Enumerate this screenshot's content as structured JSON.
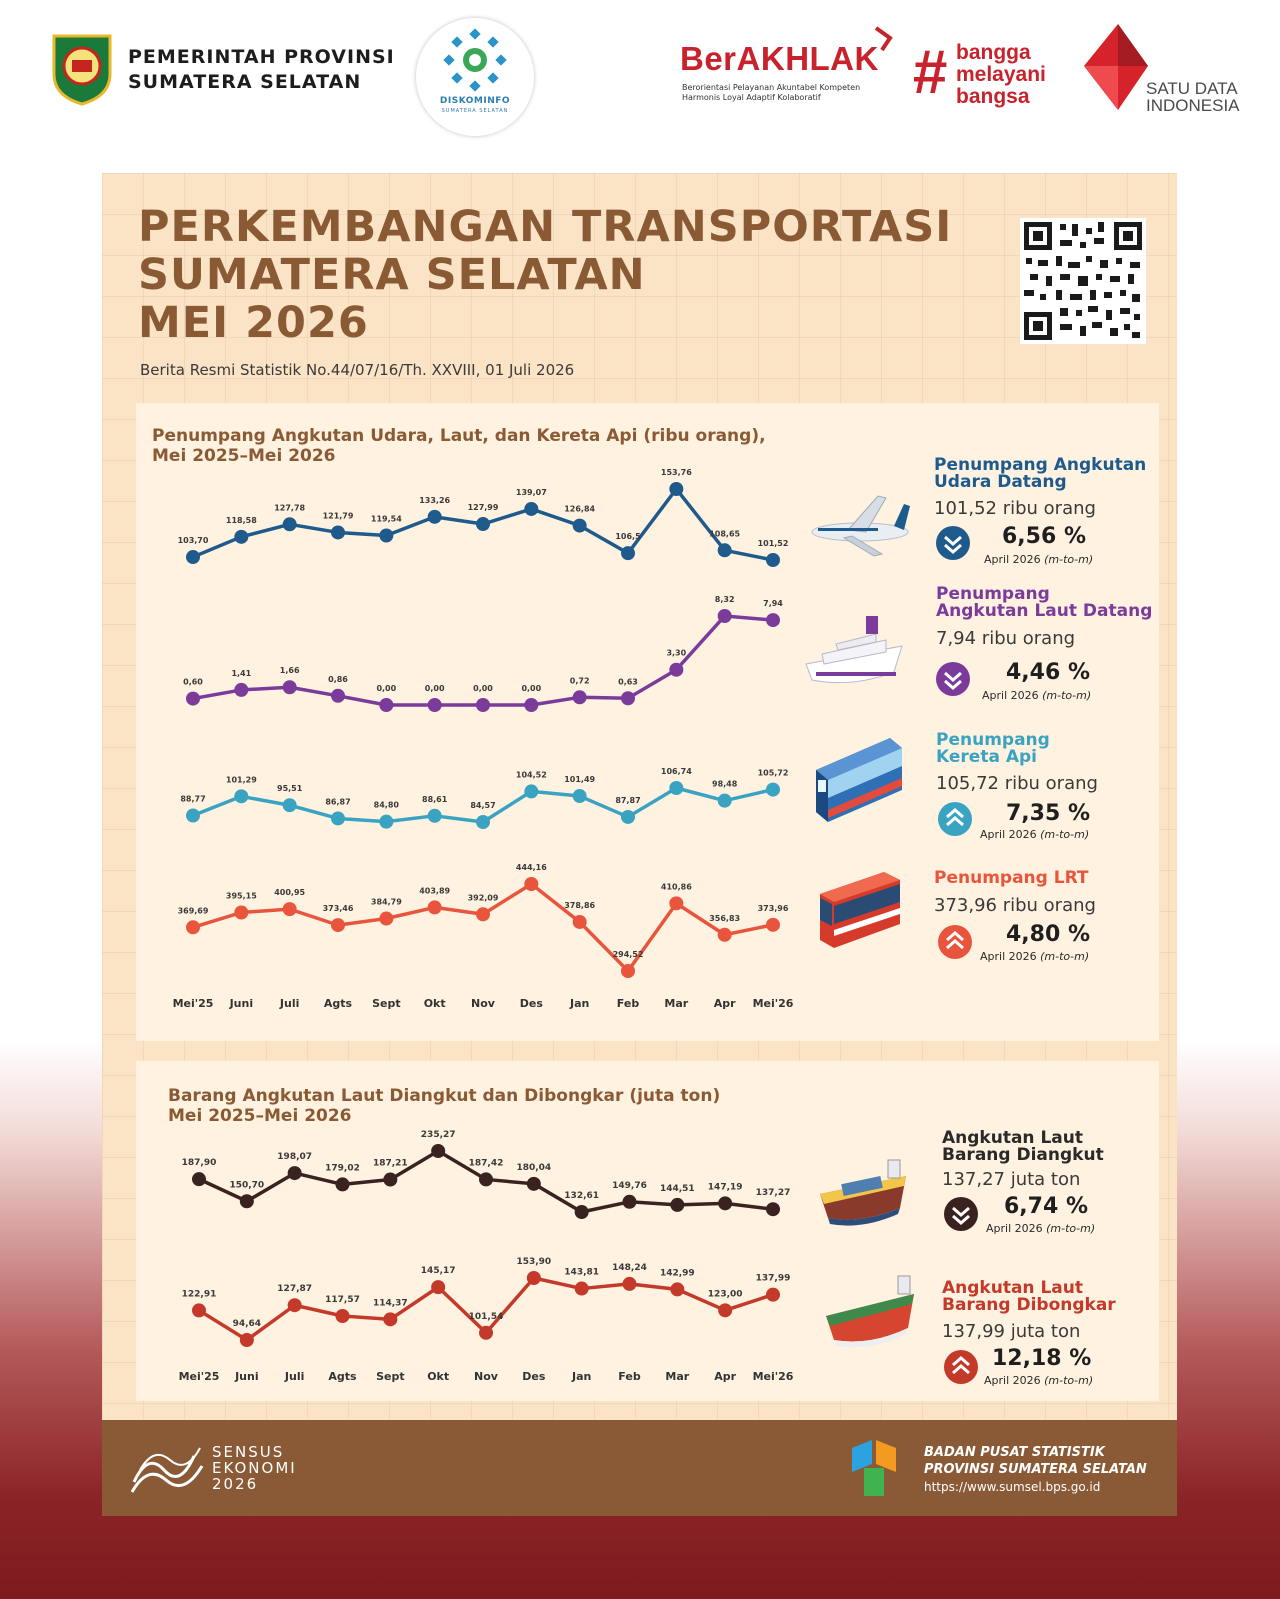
{
  "header": {
    "prov_line1": "PEMERINTAH PROVINSI",
    "prov_line2": "SUMATERA SELATAN",
    "diskominfo": "DISKOMINFO",
    "diskominfo_sub": "SUMATERA SELATAN",
    "berakhlak": "BerAKHLAK",
    "berakhlak_tag1": "Berorientasi Pelayanan Akuntabel Kompeten",
    "berakhlak_tag2": "Harmonis Loyal Adaptif Kolaboratif",
    "bangga_hash": "#",
    "bangga_1": "bangga",
    "bangga_2": "melayani",
    "bangga_3": "bangsa",
    "satu_1": "SATU DATA",
    "satu_2": "INDONESIA"
  },
  "title": {
    "line1": "PERKEMBANGAN TRANSPORTASI",
    "line2": "SUMATERA SELATAN",
    "line3": "MEI 2026",
    "subtitle": "Berita Resmi Statistik No.44/07/16/Th. XXVIII, 01 Juli 2026"
  },
  "colors": {
    "udara": "#1e5b8c",
    "laut": "#7a3b9b",
    "kereta": "#3ba3c2",
    "lrt": "#e8553c",
    "diangkut": "#3a2220",
    "dibongkar": "#c43a2a"
  },
  "chart_data": [
    {
      "type": "line",
      "title_line1": "Penumpang Angkutan Udara, Laut, dan Kereta Api (ribu orang),",
      "title_line2": "Mei 2025–Mei 2026",
      "categories": [
        "Mei'25",
        "Juni",
        "Juli",
        "Agts",
        "Sept",
        "Okt",
        "Nov",
        "Des",
        "Jan",
        "Feb",
        "Mar",
        "Apr",
        "Mei'26"
      ],
      "series": [
        {
          "key": "udara",
          "values": [
            103.7,
            118.58,
            127.78,
            121.79,
            119.54,
            133.26,
            127.99,
            139.07,
            126.84,
            106.54,
            153.76,
            108.65,
            101.52
          ],
          "labels": [
            "103,70",
            "118,58",
            "127,78",
            "121,79",
            "119,54",
            "133,26",
            "127,99",
            "139,07",
            "126,84",
            "106,5",
            "153,76",
            "108,65",
            "101,52"
          ]
        },
        {
          "key": "laut",
          "values": [
            0.6,
            1.41,
            1.66,
            0.86,
            0.0,
            0.0,
            0.0,
            0.0,
            0.72,
            0.63,
            3.3,
            8.32,
            7.94
          ],
          "labels": [
            "0,60",
            "1,41",
            "1,66",
            "0,86",
            "0,00",
            "0,00",
            "0,00",
            "0,00",
            "0,72",
            "0,63",
            "3,30",
            "8,32",
            "7,94"
          ]
        },
        {
          "key": "kereta",
          "values": [
            88.77,
            101.29,
            95.51,
            86.87,
            84.8,
            88.61,
            84.57,
            104.52,
            101.49,
            87.87,
            106.74,
            98.48,
            105.72
          ],
          "labels": [
            "88,77",
            "101,29",
            "95,51",
            "86,87",
            "84,80",
            "88,61",
            "84,57",
            "104,52",
            "101,49",
            "87,87",
            "106,74",
            "98,48",
            "105,72"
          ]
        },
        {
          "key": "lrt",
          "values": [
            369.69,
            395.15,
            400.95,
            373.46,
            384.79,
            403.89,
            392.09,
            444.16,
            378.86,
            294.52,
            410.86,
            356.83,
            373.96
          ],
          "labels": [
            "369,69",
            "395,15",
            "400,95",
            "373,46",
            "384,79",
            "403,89",
            "392,09",
            "444,16",
            "378,86",
            "294,52",
            "410,86",
            "356,83",
            "373,96"
          ]
        }
      ]
    },
    {
      "type": "line",
      "title_line1": "Barang Angkutan Laut Diangkut dan Dibongkar (juta ton)",
      "title_line2": "Mei 2025–Mei 2026",
      "categories": [
        "Mei'25",
        "Juni",
        "Juli",
        "Agts",
        "Sept",
        "Okt",
        "Nov",
        "Des",
        "Jan",
        "Feb",
        "Mar",
        "Apr",
        "Mei'26"
      ],
      "series": [
        {
          "key": "diangkut",
          "values": [
            187.9,
            150.7,
            198.07,
            179.02,
            187.21,
            235.27,
            187.42,
            180.04,
            132.61,
            149.76,
            144.51,
            147.19,
            137.27
          ],
          "labels": [
            "187,90",
            "150,70",
            "198,07",
            "179,02",
            "187,21",
            "235,27",
            "187,42",
            "180,04",
            "132,61",
            "149,76",
            "144,51",
            "147,19",
            "137,27"
          ]
        },
        {
          "key": "dibongkar",
          "values": [
            122.91,
            94.64,
            127.87,
            117.57,
            114.37,
            145.17,
            101.54,
            153.9,
            143.81,
            148.24,
            142.99,
            123.0,
            137.99
          ],
          "labels": [
            "122,91",
            "94,64",
            "127,87",
            "117,57",
            "114,37",
            "145,17",
            "101,54",
            "153,90",
            "143,81",
            "148,24",
            "142,99",
            "123,00",
            "137,99"
          ]
        }
      ]
    }
  ],
  "info": {
    "udara": {
      "h1": "Penumpang Angkutan",
      "h2": "Udara Datang",
      "value": "101,52 ribu orang",
      "pct": "6,56 %",
      "note": "April 2026",
      "note2": "(m-to-m)",
      "direction": "down"
    },
    "laut": {
      "h1": "Penumpang",
      "h2": "Angkutan Laut Datang",
      "value": "7,94 ribu orang",
      "pct": "4,46 %",
      "note": "April 2026",
      "note2": "(m-to-m)",
      "direction": "down"
    },
    "kereta": {
      "h1": "Penumpang",
      "h2": "Kereta Api",
      "value": "105,72 ribu orang",
      "pct": "7,35 %",
      "note": "April 2026",
      "note2": "(m-to-m)",
      "direction": "up"
    },
    "lrt": {
      "h1": "Penumpang LRT",
      "value": "373,96 ribu orang",
      "pct": "4,80 %",
      "note": "April 2026",
      "note2": "(m-to-m)",
      "direction": "up"
    },
    "diangkut": {
      "h1": "Angkutan Laut",
      "h2": "Barang Diangkut",
      "value": "137,27 juta ton",
      "pct": "6,74 %",
      "note": "April 2026",
      "note2": "(m-to-m)",
      "direction": "down"
    },
    "dibongkar": {
      "h1": "Angkutan Laut",
      "h2": "Barang Dibongkar",
      "value": "137,99 juta ton",
      "pct": "12,18 %",
      "note": "April 2026",
      "note2": "(m-to-m)",
      "direction": "up"
    }
  },
  "footer": {
    "sensus1": "SENSUS",
    "sensus2": "EKONOMI",
    "sensus3": "2026",
    "bps1": "BADAN PUSAT STATISTIK",
    "bps2": "PROVINSI SUMATERA SELATAN",
    "url": "https://www.sumsel.bps.go.id"
  }
}
